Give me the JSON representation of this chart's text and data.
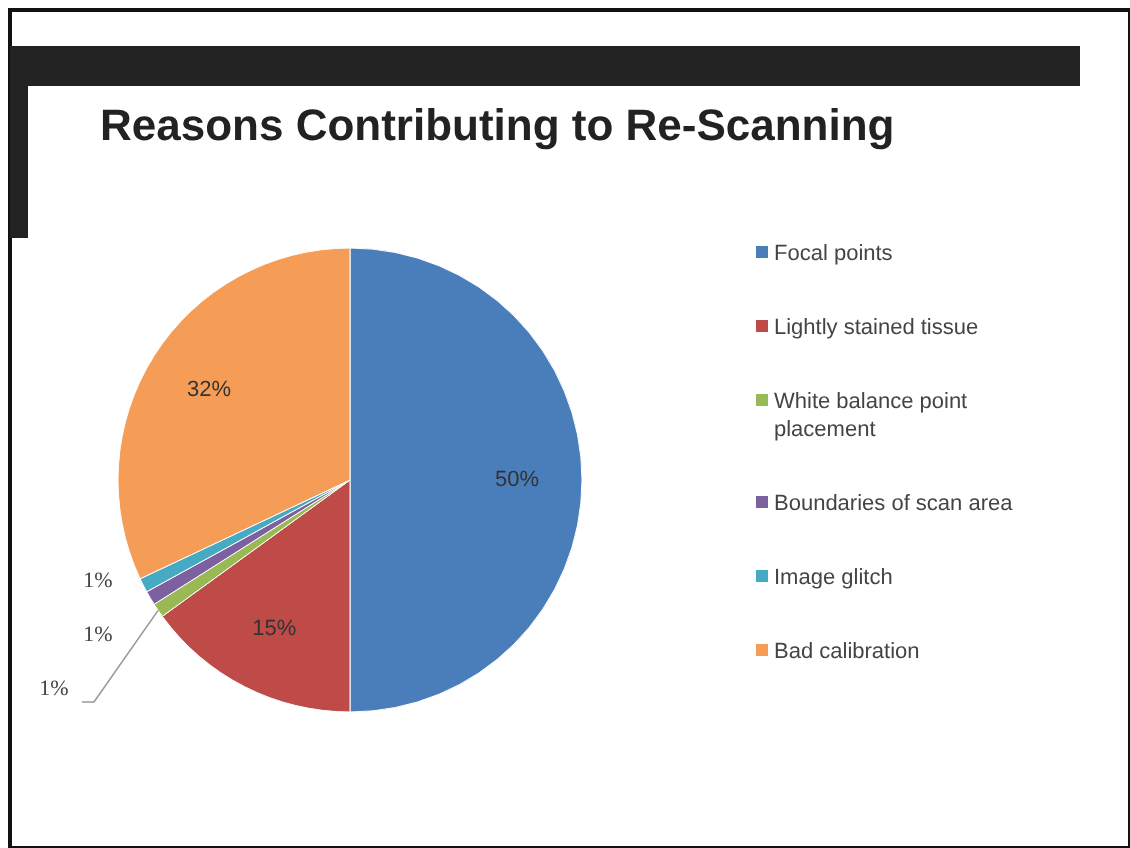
{
  "chart_data": {
    "type": "pie",
    "title": "Reasons Contributing to Re-Scanning",
    "categories": [
      "Focal points",
      "Lightly stained tissue",
      "White balance point placement",
      "Boundaries of scan area",
      "Image glitch",
      "Bad calibration"
    ],
    "values": [
      50,
      15,
      1,
      1,
      1,
      32
    ],
    "value_labels": [
      "50%",
      "15%",
      "1%",
      "1%",
      "1%",
      "32%"
    ],
    "colors": [
      "#4a7ebb",
      "#be4b48",
      "#98b954",
      "#7d60a0",
      "#46aac5",
      "#f59d56"
    ],
    "legend": "right"
  }
}
